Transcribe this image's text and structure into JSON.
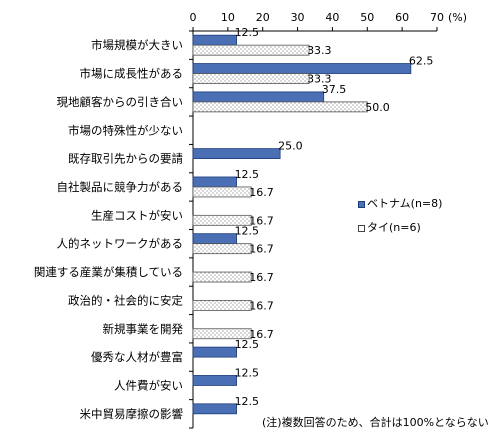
{
  "chart_data": {
    "type": "bar",
    "orientation": "horizontal",
    "categories": [
      "市場規模が大きい",
      "市場に成長性がある",
      "現地顧客からの引き合い",
      "市場の特殊性が少ない",
      "既存取引先からの要請",
      "自社製品に競争力がある",
      "生産コストが安い",
      "人的ネットワークがある",
      "関連する産業が集積している",
      "政治的・社会的に安定",
      "新規事業を開発",
      "優秀な人材が豊富",
      "人件費が安い",
      "米中貿易摩擦の影響"
    ],
    "series": [
      {
        "name": "ベトナム(n=8)",
        "color": "#4a6fb5",
        "values": [
          12.5,
          62.5,
          37.5,
          null,
          25.0,
          12.5,
          null,
          12.5,
          null,
          null,
          null,
          12.5,
          12.5,
          12.5
        ],
        "labels": [
          "12.5",
          "62.5",
          "37.5",
          "",
          "25.0",
          "12.5",
          "",
          "12.5",
          "",
          "",
          "",
          "12.5",
          "12.5",
          "12.5"
        ]
      },
      {
        "name": "タイ(n=6)",
        "color": "#ffffff",
        "pattern": "dotted",
        "values": [
          33.3,
          33.3,
          50.0,
          null,
          null,
          16.7,
          16.7,
          16.7,
          16.7,
          16.7,
          16.7,
          null,
          null,
          null
        ],
        "labels": [
          "33.3",
          "33.3",
          "50.0",
          "",
          "",
          "16.7",
          "16.7",
          "16.7",
          "16.7",
          "16.7",
          "16.7",
          "",
          "",
          ""
        ]
      }
    ],
    "xlim": [
      0,
      70
    ],
    "xticks": [
      "0",
      "10",
      "20",
      "30",
      "40",
      "50",
      "60",
      "70"
    ],
    "unit_label": "(%)",
    "grid": false,
    "legend": "right",
    "legend_labels": [
      "ベトナム(n=8)",
      "タイ(n=6)"
    ],
    "note": "(注)複数回答のため、合計は100%とならない"
  }
}
